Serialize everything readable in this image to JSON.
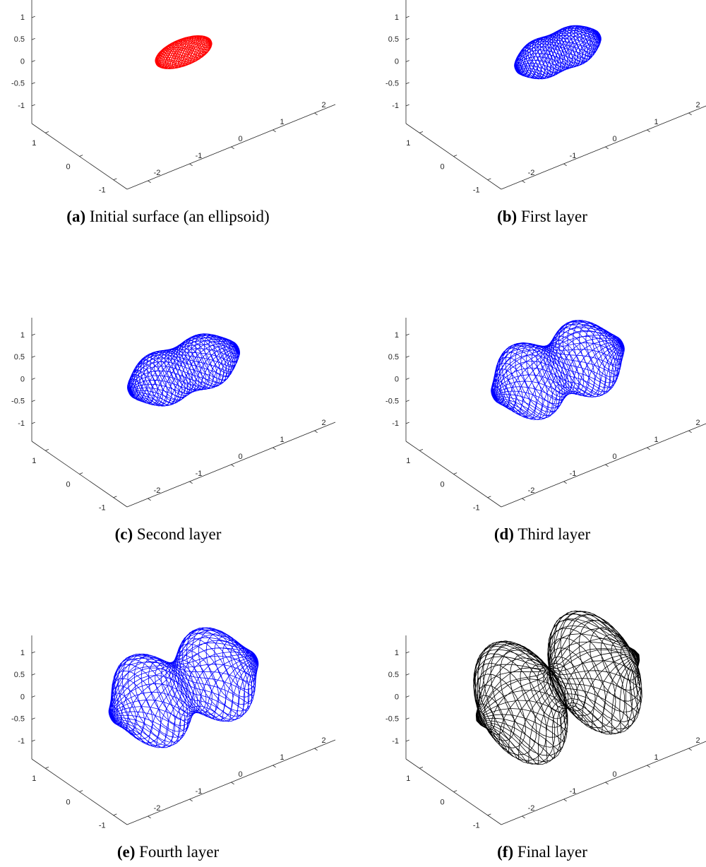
{
  "chart_data": [
    {
      "type": "wireframe3d",
      "label": "(a)",
      "title": "Initial surface (an ellipsoid)",
      "color": "#ff0000",
      "xlim": [
        -2.5,
        2.5
      ],
      "ylim": [
        -1.4,
        1.4
      ],
      "zlim": [
        -1.4,
        1.4
      ],
      "xticks": [
        -2,
        -1,
        0,
        1,
        2
      ],
      "yticks": [
        -1,
        0,
        1
      ],
      "zticks": [
        -1,
        -0.5,
        0,
        0.5,
        1
      ]
    },
    {
      "type": "wireframe3d",
      "label": "(b)",
      "title": "First layer",
      "color": "#0000ff",
      "xlim": [
        -2.5,
        2.5
      ],
      "ylim": [
        -1.4,
        1.4
      ],
      "zlim": [
        -1.4,
        1.4
      ],
      "xticks": [
        -2,
        -1,
        0,
        1,
        2
      ],
      "yticks": [
        -1,
        0,
        1
      ],
      "zticks": [
        -1,
        -0.5,
        0,
        0.5,
        1
      ]
    },
    {
      "type": "wireframe3d",
      "label": "(c)",
      "title": "Second layer",
      "color": "#0000ff",
      "xlim": [
        -2.5,
        2.5
      ],
      "ylim": [
        -1.4,
        1.4
      ],
      "zlim": [
        -1.4,
        1.4
      ],
      "xticks": [
        -2,
        -1,
        0,
        1,
        2
      ],
      "yticks": [
        -1,
        0,
        1
      ],
      "zticks": [
        -1,
        -0.5,
        0,
        0.5,
        1
      ]
    },
    {
      "type": "wireframe3d",
      "label": "(d)",
      "title": "Third layer",
      "color": "#0000ff",
      "xlim": [
        -2.5,
        2.5
      ],
      "ylim": [
        -1.4,
        1.4
      ],
      "zlim": [
        -1.4,
        1.4
      ],
      "xticks": [
        -2,
        -1,
        0,
        1,
        2
      ],
      "yticks": [
        -1,
        0,
        1
      ],
      "zticks": [
        -1,
        -0.5,
        0,
        0.5,
        1
      ]
    },
    {
      "type": "wireframe3d",
      "label": "(e)",
      "title": "Fourth layer",
      "color": "#0000ff",
      "xlim": [
        -2.5,
        2.5
      ],
      "ylim": [
        -1.4,
        1.4
      ],
      "zlim": [
        -1.4,
        1.4
      ],
      "xticks": [
        -2,
        -1,
        0,
        1,
        2
      ],
      "yticks": [
        -1,
        0,
        1
      ],
      "zticks": [
        -1,
        -0.5,
        0,
        0.5,
        1
      ]
    },
    {
      "type": "wireframe3d",
      "label": "(f)",
      "title": "Final layer",
      "color": "#000000",
      "xlim": [
        -2.5,
        2.5
      ],
      "ylim": [
        -1.4,
        1.4
      ],
      "zlim": [
        -1.4,
        1.4
      ],
      "xticks": [
        -2,
        -1,
        0,
        1,
        2
      ],
      "yticks": [
        -1,
        0,
        1
      ],
      "zticks": [
        -1,
        -0.5,
        0,
        0.5,
        1
      ]
    }
  ]
}
